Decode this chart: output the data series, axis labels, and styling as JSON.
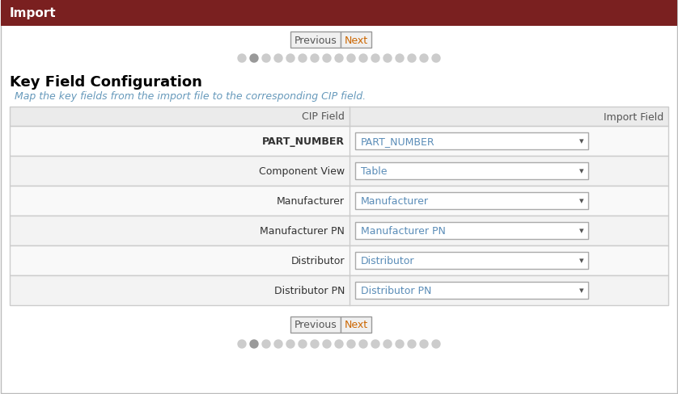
{
  "title_bar_text": "Import",
  "title_bar_color": "#7A2020",
  "title_bar_text_color": "#FFFFFF",
  "background_color": "#FFFFFF",
  "outer_border_color": "#BBBBBB",
  "heading": "Key Field Configuration",
  "heading_color": "#000000",
  "subheading": "Map the key fields from the import file to the corresponding CIP field.",
  "subheading_color": "#6699BB",
  "table_header_bg": "#EBEBEB",
  "table_row_bg_alt": "#F3F3F3",
  "table_row_bg_white": "#F9F9F9",
  "table_border_color": "#CCCCCC",
  "cip_field_header": "CIP Field",
  "import_field_header": "Import Field",
  "rows": [
    {
      "cip": "PART_NUMBER",
      "import": "PART_NUMBER",
      "cip_bold": true
    },
    {
      "cip": "Component View",
      "import": "Table",
      "cip_bold": false
    },
    {
      "cip": "Manufacturer",
      "import": "Manufacturer",
      "cip_bold": false
    },
    {
      "cip": "Manufacturer PN",
      "import": "Manufacturer PN",
      "cip_bold": false
    },
    {
      "cip": "Distributor",
      "import": "Distributor",
      "cip_bold": false
    },
    {
      "cip": "Distributor PN",
      "import": "Distributor PN",
      "cip_bold": false
    }
  ],
  "button_color": "#F0F0F0",
  "button_border_color": "#999999",
  "button_text_prev_color": "#555555",
  "button_text_next_color": "#CC6600",
  "prev_button": "Previous",
  "next_button": "Next",
  "dot_color_dark": "#999999",
  "dot_color_light": "#CCCCCC",
  "num_dots": 17,
  "active_dot_index": 1,
  "dropdown_bg": "#FFFFFF",
  "dropdown_border_color": "#AAAAAA",
  "dropdown_text_color": "#5B8DB8",
  "dropdown_arrow_color": "#555555",
  "cip_label_color": "#333333",
  "header_label_color": "#555555"
}
